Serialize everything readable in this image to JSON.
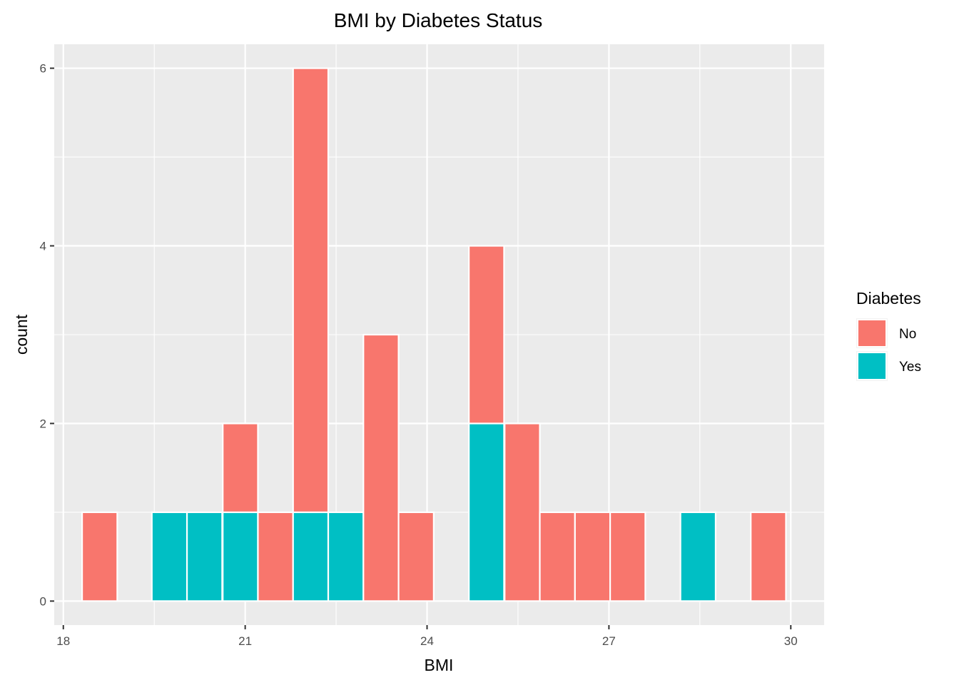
{
  "chart_data": {
    "type": "bar",
    "title": "BMI by Diabetes Status",
    "xlabel": "BMI",
    "ylabel": "count",
    "xlim": [
      17.85,
      30.55
    ],
    "ylim": [
      -0.27,
      6.27
    ],
    "xticks": [
      18,
      21,
      24,
      27,
      30
    ],
    "yticks": [
      0,
      2,
      4,
      6
    ],
    "grid": true,
    "bin_width": 0.58,
    "legend": {
      "title": "Diabetes",
      "position": "right",
      "entries": [
        {
          "label": "No",
          "color": "#F8766D"
        },
        {
          "label": "Yes",
          "color": "#00BFC4"
        }
      ]
    },
    "bins": [
      18.6,
      19.75,
      20.33,
      20.92,
      21.5,
      22.08,
      22.66,
      23.24,
      23.82,
      24.98,
      25.57,
      26.15,
      26.73,
      27.31,
      28.47,
      29.63
    ],
    "series": [
      {
        "name": "No",
        "color": "#F8766D",
        "values": [
          1,
          0,
          0,
          1,
          1,
          5,
          0,
          3,
          1,
          2,
          2,
          1,
          1,
          1,
          0,
          1
        ]
      },
      {
        "name": "Yes",
        "color": "#00BFC4",
        "values": [
          0,
          1,
          1,
          1,
          0,
          1,
          1,
          0,
          0,
          2,
          0,
          0,
          0,
          0,
          1,
          0
        ]
      }
    ]
  }
}
